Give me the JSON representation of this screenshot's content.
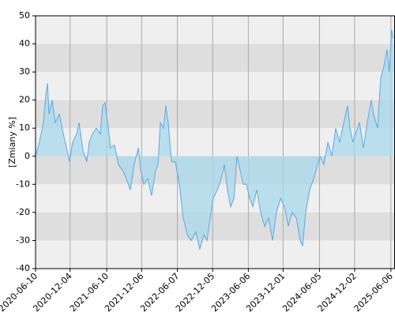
{
  "chart_data": {
    "type": "area",
    "y_label": "[Zmiany %]",
    "x": [
      "2020-06-10",
      "2020-06-30",
      "2020-07-20",
      "2020-08-02",
      "2020-08-10",
      "2020-08-18",
      "2020-09-03",
      "2020-09-19",
      "2020-10-10",
      "2020-10-30",
      "2020-11-19",
      "2020-12-01",
      "2020-12-17",
      "2021-01-07",
      "2021-01-19",
      "2021-02-08",
      "2021-02-28",
      "2021-03-12",
      "2021-03-29",
      "2021-04-18",
      "2021-05-08",
      "2021-05-20",
      "2021-06-01",
      "2021-06-18",
      "2021-06-30",
      "2021-07-20",
      "2021-08-09",
      "2021-08-30",
      "2021-09-19",
      "2021-10-09",
      "2021-10-29",
      "2021-11-19",
      "2021-12-01",
      "2021-12-17",
      "2022-01-06",
      "2022-01-26",
      "2022-02-16",
      "2022-02-28",
      "2022-03-12",
      "2022-03-28",
      "2022-04-09",
      "2022-04-21",
      "2022-05-08",
      "2022-05-28",
      "2022-06-17",
      "2022-07-07",
      "2022-07-28",
      "2022-08-17",
      "2022-09-10",
      "2022-09-30",
      "2022-10-21",
      "2022-11-06",
      "2022-11-22",
      "2022-12-08",
      "2022-12-29",
      "2023-01-18",
      "2023-02-03",
      "2023-02-19",
      "2023-03-07",
      "2023-03-24",
      "2023-04-09",
      "2023-04-25",
      "2023-05-11",
      "2023-05-27",
      "2023-06-13",
      "2023-06-29",
      "2023-07-19",
      "2023-08-08",
      "2023-08-29",
      "2023-09-18",
      "2023-10-08",
      "2023-10-28",
      "2023-11-18",
      "2023-12-08",
      "2023-12-28",
      "2024-01-17",
      "2024-02-07",
      "2024-02-27",
      "2024-03-10",
      "2024-03-26",
      "2024-04-15",
      "2024-05-06",
      "2024-05-18",
      "2024-06-07",
      "2024-06-27",
      "2024-07-18",
      "2024-08-07",
      "2024-08-27",
      "2024-09-16",
      "2024-10-07",
      "2024-10-27",
      "2024-11-08",
      "2024-11-24",
      "2024-12-06",
      "2024-12-27",
      "2025-01-16",
      "2025-02-05",
      "2025-02-25",
      "2025-03-09",
      "2025-03-30",
      "2025-04-15",
      "2025-05-01",
      "2025-05-17",
      "2025-05-29",
      "2025-06-10",
      "2025-06-18"
    ],
    "values": [
      0,
      5,
      12,
      22,
      26,
      15,
      20,
      12,
      15,
      8,
      2,
      -2,
      5,
      8,
      12,
      2,
      -2,
      5,
      8,
      10,
      8,
      18,
      19,
      10,
      3,
      4,
      -3,
      -5,
      -8,
      -12,
      -3,
      3,
      -5,
      -10,
      -8,
      -14,
      -5,
      -3,
      12,
      10,
      18,
      12,
      -2,
      -2,
      -10,
      -22,
      -28,
      -30,
      -27,
      -33,
      -28,
      -30,
      -22,
      -15,
      -12,
      -8,
      -3,
      -12,
      -18,
      -15,
      0,
      -5,
      -10,
      -10,
      -15,
      -18,
      -12,
      -20,
      -25,
      -22,
      -30,
      -20,
      -15,
      -18,
      -25,
      -20,
      -22,
      -30,
      -32,
      -20,
      -12,
      -8,
      -5,
      0,
      -3,
      5,
      0,
      10,
      5,
      12,
      18,
      10,
      5,
      8,
      12,
      3,
      12,
      20,
      15,
      10,
      28,
      32,
      38,
      30,
      45,
      42
    ],
    "line_color": "#5aa9e6",
    "fill_color": "#a8d8ea",
    "xlim": [
      "2020-06-10",
      "2025-06-27"
    ],
    "xticks": [
      "2020-06-10",
      "2020-12-04",
      "2021-06-10",
      "2021-12-06",
      "2022-06-07",
      "2022-12-05",
      "2023-06-06",
      "2023-12-01",
      "2024-06-05",
      "2024-12-02",
      "2025-06-06"
    ],
    "ylim": [
      -40,
      50
    ],
    "yticks": [
      -40,
      -30,
      -20,
      -10,
      0,
      10,
      20,
      30,
      40,
      50
    ],
    "band_colors": [
      "#efefef",
      "#dedede"
    ],
    "grid": true
  }
}
